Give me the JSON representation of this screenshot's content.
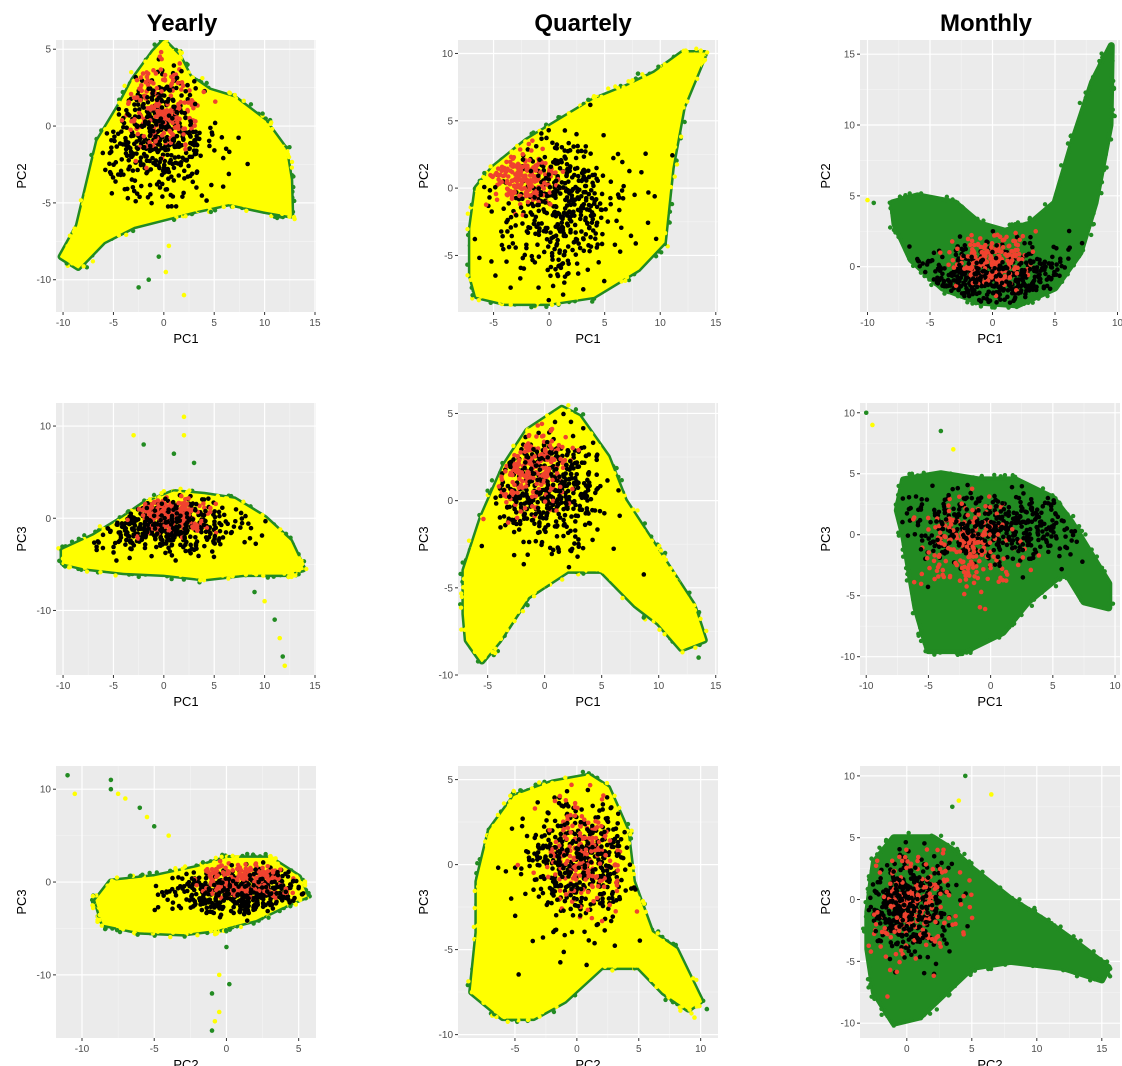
{
  "column_titles": [
    "Yearly",
    "Quartely",
    "Monthly"
  ],
  "legend": "none",
  "point_colors": {
    "cloud": "#ffff00",
    "edge": "#228b22",
    "black": "#000000",
    "red": "#f0432f"
  },
  "chart_data": [
    {
      "type": "scatter",
      "column_title": "Yearly",
      "xlabel": "PC1",
      "ylabel": "PC2",
      "xlim": [
        -10.7,
        15.1
      ],
      "ylim": [
        -12.1,
        5.6
      ],
      "xticks": [
        -10,
        -5,
        0,
        5,
        10,
        15
      ],
      "yticks": [
        5,
        0,
        -5,
        -10
      ],
      "cloud_color": "#ffff00",
      "edge_color": "#228b22",
      "cloud_outline": [
        [
          -10.2,
          -8.5
        ],
        [
          -8.5,
          -6.5
        ],
        [
          -6.5,
          -1
        ],
        [
          -4.2,
          1.5
        ],
        [
          -3,
          3
        ],
        [
          -1,
          4.8
        ],
        [
          0,
          5.5
        ],
        [
          1.5,
          4.5
        ],
        [
          2.5,
          3.2
        ],
        [
          4.5,
          2.3
        ],
        [
          7,
          1.8
        ],
        [
          10,
          0.3
        ],
        [
          12,
          -1.5
        ],
        [
          12.5,
          -3.5
        ],
        [
          12.6,
          -5.8
        ],
        [
          10,
          -5.5
        ],
        [
          6.5,
          -5
        ],
        [
          3,
          -5.5
        ],
        [
          0,
          -6
        ],
        [
          -3,
          -6.5
        ],
        [
          -6,
          -7.5
        ],
        [
          -8.5,
          -9.2
        ]
      ],
      "black_center": [
        -0.5,
        -0.5
      ],
      "black_spread": [
        3,
        2.2
      ],
      "red_center": [
        0,
        1.2
      ],
      "red_spread": [
        1.8,
        1.4
      ],
      "outliers": [
        [
          -0.5,
          -8.5
        ],
        [
          0.2,
          -9.5
        ],
        [
          -2.5,
          -10.5
        ],
        [
          2,
          -11
        ],
        [
          -1.5,
          -10
        ],
        [
          0.5,
          -7.8
        ]
      ]
    },
    {
      "type": "scatter",
      "column_title": "Quartely",
      "xlabel": "PC1",
      "ylabel": "PC2",
      "xlim": [
        -8.2,
        15.2
      ],
      "ylim": [
        -9.2,
        11.0
      ],
      "xticks": [
        -5,
        0,
        5,
        10,
        15
      ],
      "yticks": [
        10,
        5,
        0,
        -5
      ],
      "cloud_color": "#ffff00",
      "edge_color": "#228b22",
      "cloud_outline": [
        [
          -7,
          -6.5
        ],
        [
          -7,
          -3
        ],
        [
          -6.5,
          0
        ],
        [
          -5,
          1.5
        ],
        [
          -2,
          3.5
        ],
        [
          1,
          5
        ],
        [
          4,
          6.5
        ],
        [
          7,
          7.5
        ],
        [
          9.5,
          8.5
        ],
        [
          12,
          10
        ],
        [
          14,
          10
        ],
        [
          12,
          6
        ],
        [
          11,
          1.5
        ],
        [
          10.3,
          -4
        ],
        [
          8,
          -6
        ],
        [
          4,
          -8
        ],
        [
          0,
          -8.5
        ],
        [
          -4,
          -8.5
        ],
        [
          -6.5,
          -8
        ]
      ],
      "black_center": [
        1,
        -1.5
      ],
      "black_spread": [
        3.2,
        2.8
      ],
      "red_center": [
        -2.5,
        0.7
      ],
      "red_spread": [
        1.6,
        1.2
      ],
      "outliers": [
        [
          8,
          8.5
        ],
        [
          7.5,
          8
        ]
      ]
    },
    {
      "type": "scatter",
      "column_title": "Monthly",
      "xlabel": "PC1",
      "ylabel": "PC2",
      "xlim": [
        -10.6,
        10.2
      ],
      "ylim": [
        -3.2,
        16.0
      ],
      "xticks": [
        -10,
        -5,
        0,
        5,
        10
      ],
      "yticks": [
        15,
        10,
        5,
        0
      ],
      "cloud_color": "#228b22",
      "edge_color": "#228b22",
      "cloud_outline": [
        [
          -8,
          4.5
        ],
        [
          -6,
          5
        ],
        [
          -3,
          4.5
        ],
        [
          -1,
          3
        ],
        [
          1,
          2.5
        ],
        [
          3,
          3
        ],
        [
          5,
          4.5
        ],
        [
          6.5,
          9
        ],
        [
          8,
          13
        ],
        [
          9.5,
          15.6
        ],
        [
          9.4,
          10
        ],
        [
          8.2,
          4.5
        ],
        [
          7,
          1
        ],
        [
          5,
          -1.5
        ],
        [
          2,
          -2.7
        ],
        [
          -1,
          -2.5
        ],
        [
          -4,
          -1.5
        ],
        [
          -6.5,
          0.5
        ],
        [
          -7.8,
          3
        ]
      ],
      "black_center": [
        -0.5,
        -0.8
      ],
      "black_spread": [
        3.5,
        1.2
      ],
      "red_center": [
        0,
        0.5
      ],
      "red_spread": [
        1.5,
        1
      ],
      "outliers": [
        [
          -9.5,
          4.5
        ],
        [
          -10,
          4.7
        ]
      ]
    },
    {
      "type": "scatter",
      "column_title": "Yearly",
      "xlabel": "PC1",
      "ylabel": "PC3",
      "xlim": [
        -10.7,
        15.1
      ],
      "ylim": [
        -17.0,
        12.5
      ],
      "xticks": [
        -10,
        -5,
        0,
        5,
        10,
        15
      ],
      "yticks": [
        10,
        0,
        -10
      ],
      "cloud_color": "#ffff00",
      "edge_color": "#228b22",
      "cloud_outline": [
        [
          -10,
          -4.8
        ],
        [
          -10,
          -3.5
        ],
        [
          -7,
          -2
        ],
        [
          -4,
          0
        ],
        [
          -2,
          1.5
        ],
        [
          1,
          2.8
        ],
        [
          4,
          2.5
        ],
        [
          7,
          2
        ],
        [
          10,
          0
        ],
        [
          12.5,
          -2.5
        ],
        [
          13.8,
          -5.5
        ],
        [
          12,
          -6
        ],
        [
          8,
          -6
        ],
        [
          4,
          -6.5
        ],
        [
          0,
          -6
        ],
        [
          -4,
          -5.8
        ],
        [
          -8,
          -5.3
        ]
      ],
      "black_center": [
        0,
        -0.5
      ],
      "black_spread": [
        3.8,
        1.5
      ],
      "red_center": [
        0.5,
        0.5
      ],
      "red_spread": [
        2,
        1
      ],
      "outliers": [
        [
          1,
          7
        ],
        [
          2,
          9
        ],
        [
          3,
          6
        ],
        [
          -3,
          9
        ],
        [
          -2,
          8
        ],
        [
          10,
          -9
        ],
        [
          11,
          -11
        ],
        [
          11.5,
          -13
        ],
        [
          11.8,
          -15
        ],
        [
          12,
          -16
        ],
        [
          9,
          -8
        ],
        [
          2,
          11
        ]
      ]
    },
    {
      "type": "scatter",
      "column_title": "Quartely",
      "xlabel": "PC1",
      "ylabel": "PC3",
      "xlim": [
        -7.6,
        15.2
      ],
      "ylim": [
        -10.0,
        5.6
      ],
      "xticks": [
        -5,
        0,
        5,
        10,
        15
      ],
      "yticks": [
        5,
        0,
        -5,
        -10
      ],
      "cloud_color": "#ffff00",
      "edge_color": "#228b22",
      "cloud_outline": [
        [
          -7,
          -6.5
        ],
        [
          -7,
          -4
        ],
        [
          -5.5,
          -1
        ],
        [
          -3.5,
          2
        ],
        [
          -1.5,
          4
        ],
        [
          1.5,
          5.3
        ],
        [
          3,
          4.8
        ],
        [
          5.5,
          2.5
        ],
        [
          7,
          0
        ],
        [
          9.5,
          -2.5
        ],
        [
          10.5,
          -3.5
        ],
        [
          13,
          -6
        ],
        [
          14,
          -8
        ],
        [
          12,
          -8.5
        ],
        [
          10,
          -7
        ],
        [
          8,
          -6
        ],
        [
          5,
          -4
        ],
        [
          2,
          -4
        ],
        [
          -1.5,
          -5.5
        ],
        [
          -4,
          -8
        ],
        [
          -5.5,
          -9.2
        ],
        [
          -6.8,
          -8
        ]
      ],
      "black_center": [
        0.5,
        0.5
      ],
      "black_spread": [
        2.6,
        1.8
      ],
      "red_center": [
        -1.2,
        1.8
      ],
      "red_spread": [
        1.6,
        1.2
      ],
      "outliers": [
        [
          13.5,
          -9
        ],
        [
          12.5,
          -7.5
        ]
      ]
    },
    {
      "type": "scatter",
      "column_title": "Monthly",
      "xlabel": "PC1",
      "ylabel": "PC3",
      "xlim": [
        -10.5,
        10.4
      ],
      "ylim": [
        -11.5,
        10.8
      ],
      "xticks": [
        -10,
        -5,
        0,
        5,
        10
      ],
      "yticks": [
        10,
        5,
        0,
        -5,
        -10
      ],
      "cloud_color": "#228b22",
      "edge_color": "#228b22",
      "cloud_outline": [
        [
          -7.5,
          2
        ],
        [
          -7,
          4.5
        ],
        [
          -4,
          5
        ],
        [
          -1,
          4.5
        ],
        [
          2,
          4.5
        ],
        [
          5,
          3
        ],
        [
          6.5,
          1
        ],
        [
          8,
          -1.5
        ],
        [
          9.5,
          -4
        ],
        [
          9.5,
          -6
        ],
        [
          7.5,
          -5.5
        ],
        [
          6,
          -3
        ],
        [
          3,
          -5.5
        ],
        [
          1,
          -8
        ],
        [
          -2,
          -9.5
        ],
        [
          -5,
          -9.5
        ],
        [
          -6,
          -6
        ],
        [
          -6.5,
          -3
        ],
        [
          -7,
          0
        ]
      ],
      "black_center": [
        0,
        0.5
      ],
      "black_spread": [
        4,
        1.5
      ],
      "red_center": [
        -2,
        -1
      ],
      "red_spread": [
        2,
        2
      ],
      "outliers": [
        [
          -10,
          10
        ],
        [
          -9.5,
          9
        ],
        [
          -4,
          8.5
        ],
        [
          -3,
          7
        ]
      ]
    },
    {
      "type": "scatter",
      "column_title": "Yearly",
      "xlabel": "PC2",
      "ylabel": "PC3",
      "xlim": [
        -11.8,
        6.2
      ],
      "ylim": [
        -16.8,
        12.5
      ],
      "xticks": [
        -10,
        -5,
        0,
        5
      ],
      "yticks": [
        10,
        0,
        -10
      ],
      "cloud_color": "#ffff00",
      "edge_color": "#228b22",
      "cloud_outline": [
        [
          -8.5,
          -4.5
        ],
        [
          -9,
          -2
        ],
        [
          -8,
          0
        ],
        [
          -5,
          0.5
        ],
        [
          -2,
          1.5
        ],
        [
          0,
          2.5
        ],
        [
          3,
          2.5
        ],
        [
          5,
          0.5
        ],
        [
          5.5,
          -1.5
        ],
        [
          4,
          -2.5
        ],
        [
          2,
          -4
        ],
        [
          -0.5,
          -5
        ],
        [
          -3,
          -5.5
        ],
        [
          -6,
          -5.3
        ]
      ],
      "black_center": [
        1,
        -1
      ],
      "black_spread": [
        2.5,
        1.2
      ],
      "red_center": [
        1,
        0.2
      ],
      "red_spread": [
        1.6,
        0.9
      ],
      "outliers": [
        [
          -11,
          11.5
        ],
        [
          -10.5,
          9.5
        ],
        [
          -8,
          11
        ],
        [
          -7,
          9
        ],
        [
          -6,
          8
        ],
        [
          -5.5,
          7
        ],
        [
          -5,
          6
        ],
        [
          -4,
          5
        ],
        [
          -8,
          10
        ],
        [
          -7.5,
          9.5
        ],
        [
          0,
          -7
        ],
        [
          -0.5,
          -10
        ],
        [
          -1,
          -12
        ],
        [
          -0.5,
          -14
        ],
        [
          -1,
          -16
        ],
        [
          -0.8,
          -15
        ],
        [
          0.2,
          -11
        ]
      ]
    },
    {
      "type": "scatter",
      "column_title": "Quartely",
      "xlabel": "PC2",
      "ylabel": "PC3",
      "xlim": [
        -9.6,
        11.4
      ],
      "ylim": [
        -10.2,
        5.8
      ],
      "xticks": [
        -5,
        0,
        5,
        10
      ],
      "yticks": [
        5,
        0,
        -5,
        -10
      ],
      "cloud_color": "#ffff00",
      "edge_color": "#228b22",
      "cloud_outline": [
        [
          -8.5,
          -7.5
        ],
        [
          -8,
          -4
        ],
        [
          -8,
          -1
        ],
        [
          -7,
          2
        ],
        [
          -5,
          4
        ],
        [
          -2,
          4.8
        ],
        [
          1,
          5.2
        ],
        [
          2.5,
          4.5
        ],
        [
          4,
          2
        ],
        [
          4.5,
          -1
        ],
        [
          6,
          -4
        ],
        [
          8,
          -5
        ],
        [
          10,
          -8
        ],
        [
          9,
          -8.5
        ],
        [
          7,
          -7.5
        ],
        [
          5,
          -6
        ],
        [
          2,
          -6
        ],
        [
          -1,
          -8
        ],
        [
          -3.5,
          -9
        ],
        [
          -6,
          -9
        ]
      ],
      "black_center": [
        0,
        0
      ],
      "black_spread": [
        2.6,
        2
      ],
      "red_center": [
        0.5,
        0.5
      ],
      "red_spread": [
        1.5,
        1.5
      ],
      "outliers": [
        [
          10.5,
          -8.5
        ],
        [
          9.5,
          -9
        ]
      ]
    },
    {
      "type": "scatter",
      "column_title": "Monthly",
      "xlabel": "PC2",
      "ylabel": "PC3",
      "xlim": [
        -3.6,
        16.4
      ],
      "ylim": [
        -11.2,
        10.8
      ],
      "xticks": [
        0,
        5,
        10,
        15
      ],
      "yticks": [
        10,
        5,
        0,
        -5,
        -10
      ],
      "cloud_color": "#228b22",
      "edge_color": "#228b22",
      "cloud_outline": [
        [
          -3,
          -1
        ],
        [
          -2.5,
          3
        ],
        [
          -1,
          5
        ],
        [
          2,
          5
        ],
        [
          3.5,
          4
        ],
        [
          5,
          2.5
        ],
        [
          8,
          0
        ],
        [
          11,
          -2
        ],
        [
          13,
          -3.5
        ],
        [
          15.5,
          -5.5
        ],
        [
          15,
          -6.5
        ],
        [
          12,
          -5.5
        ],
        [
          8,
          -5
        ],
        [
          5,
          -5.5
        ],
        [
          3,
          -7.5
        ],
        [
          1,
          -9.5
        ],
        [
          -1,
          -10
        ],
        [
          -2.5,
          -7.5
        ],
        [
          -3,
          -4
        ]
      ],
      "black_center": [
        0,
        -0.5
      ],
      "black_spread": [
        1.6,
        2
      ],
      "red_center": [
        0.5,
        -0.5
      ],
      "red_spread": [
        1.8,
        2.5
      ],
      "outliers": [
        [
          4.5,
          10
        ],
        [
          6.5,
          8.5
        ],
        [
          3.5,
          7.5
        ],
        [
          4,
          8
        ]
      ]
    }
  ]
}
